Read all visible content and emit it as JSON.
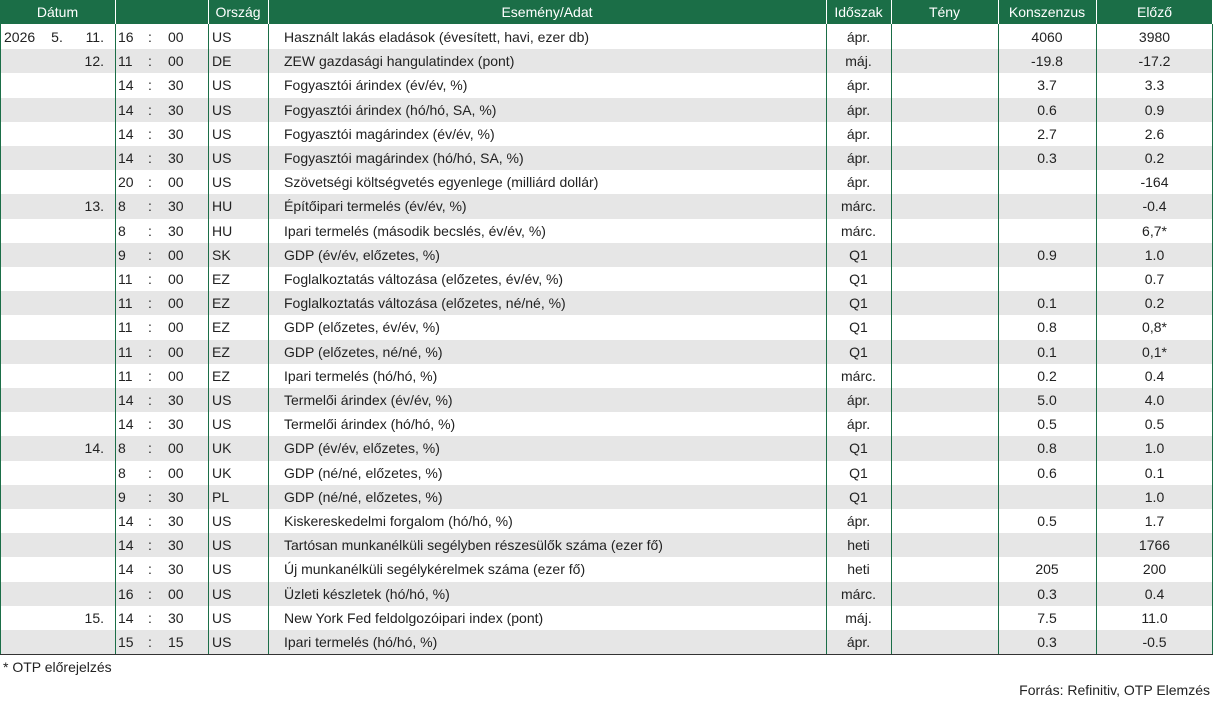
{
  "header": {
    "date": "Dátum",
    "country": "Ország",
    "event": "Esemény/Adat",
    "period": "Időszak",
    "actual": "Tény",
    "consensus": "Konszenzus",
    "previous": "Előző"
  },
  "table": {
    "rows": [
      [
        "2026",
        "5.",
        "11.",
        "16",
        ":",
        "00",
        "US",
        "Használt lakás eladások (évesített, havi, ezer db)",
        "ápr.",
        null,
        "4060",
        "3980"
      ],
      [
        null,
        null,
        "12.",
        "11",
        ":",
        "00",
        "DE",
        "ZEW gazdasági hangulatindex (pont)",
        "máj.",
        null,
        "-19.8",
        "-17.2"
      ],
      [
        null,
        null,
        null,
        "14",
        ":",
        "30",
        "US",
        "Fogyasztói árindex (év/év, %)",
        "ápr.",
        null,
        "3.7",
        "3.3"
      ],
      [
        null,
        null,
        null,
        "14",
        ":",
        "30",
        "US",
        "Fogyasztói árindex (hó/hó, SA, %)",
        "ápr.",
        null,
        "0.6",
        "0.9"
      ],
      [
        null,
        null,
        null,
        "14",
        ":",
        "30",
        "US",
        "Fogyasztói magárindex (év/év, %)",
        "ápr.",
        null,
        "2.7",
        "2.6"
      ],
      [
        null,
        null,
        null,
        "14",
        ":",
        "30",
        "US",
        "Fogyasztói magárindex (hó/hó, SA, %)",
        "ápr.",
        null,
        "0.3",
        "0.2"
      ],
      [
        null,
        null,
        null,
        "20",
        ":",
        "00",
        "US",
        "Szövetségi költségvetés egyenlege (milliárd dollár)",
        "ápr.",
        null,
        null,
        "-164"
      ],
      [
        null,
        null,
        "13.",
        "8",
        ":",
        "30",
        "HU",
        "Építőipari termelés (év/év, %)",
        "márc.",
        null,
        null,
        "-0.4"
      ],
      [
        null,
        null,
        null,
        "8",
        ":",
        "30",
        "HU",
        "Ipari termelés (második becslés, év/év, %)",
        "márc.",
        null,
        null,
        "6,7*"
      ],
      [
        null,
        null,
        null,
        "9",
        ":",
        "00",
        "SK",
        "GDP (év/év, előzetes, %)",
        "Q1",
        null,
        "0.9",
        "1.0"
      ],
      [
        null,
        null,
        null,
        "11",
        ":",
        "00",
        "EZ",
        "Foglalkoztatás változása (előzetes, év/év, %)",
        "Q1",
        null,
        null,
        "0.7"
      ],
      [
        null,
        null,
        null,
        "11",
        ":",
        "00",
        "EZ",
        "Foglalkoztatás változása (előzetes, né/né, %)",
        "Q1",
        null,
        "0.1",
        "0.2"
      ],
      [
        null,
        null,
        null,
        "11",
        ":",
        "00",
        "EZ",
        "GDP (előzetes, év/év, %)",
        "Q1",
        null,
        "0.8",
        "0,8*"
      ],
      [
        null,
        null,
        null,
        "11",
        ":",
        "00",
        "EZ",
        "GDP (előzetes, né/né, %)",
        "Q1",
        null,
        "0.1",
        "0,1*"
      ],
      [
        null,
        null,
        null,
        "11",
        ":",
        "00",
        "EZ",
        "Ipari termelés (hó/hó, %)",
        "márc.",
        null,
        "0.2",
        "0.4"
      ],
      [
        null,
        null,
        null,
        "14",
        ":",
        "30",
        "US",
        "Termelői árindex (év/év, %)",
        "ápr.",
        null,
        "5.0",
        "4.0"
      ],
      [
        null,
        null,
        null,
        "14",
        ":",
        "30",
        "US",
        "Termelői árindex (hó/hó, %)",
        "ápr.",
        null,
        "0.5",
        "0.5"
      ],
      [
        null,
        null,
        "14.",
        "8",
        ":",
        "00",
        "UK",
        "GDP (év/év, előzetes, %)",
        "Q1",
        null,
        "0.8",
        "1.0"
      ],
      [
        null,
        null,
        null,
        "8",
        ":",
        "00",
        "UK",
        "GDP (né/né, előzetes, %)",
        "Q1",
        null,
        "0.6",
        "0.1"
      ],
      [
        null,
        null,
        null,
        "9",
        ":",
        "30",
        "PL",
        "GDP (né/né, előzetes, %)",
        "Q1",
        null,
        null,
        "1.0"
      ],
      [
        null,
        null,
        null,
        "14",
        ":",
        "30",
        "US",
        "Kiskereskedelmi forgalom (hó/hó, %)",
        "ápr.",
        null,
        "0.5",
        "1.7"
      ],
      [
        null,
        null,
        null,
        "14",
        ":",
        "30",
        "US",
        "Tartósan munkanélküli segélyben részesülők száma (ezer fő)",
        "heti",
        null,
        null,
        "1766"
      ],
      [
        null,
        null,
        null,
        "14",
        ":",
        "30",
        "US",
        "Új munkanélküli segélykérelmek száma (ezer fő)",
        "heti",
        null,
        "205",
        "200"
      ],
      [
        null,
        null,
        null,
        "16",
        ":",
        "00",
        "US",
        "Üzleti készletek (hó/hó, %)",
        "márc.",
        null,
        "0.3",
        "0.4"
      ],
      [
        null,
        null,
        "15.",
        "14",
        ":",
        "30",
        "US",
        "New York Fed feldolgozóipari index (pont)",
        "máj.",
        null,
        "7.5",
        "11.0"
      ],
      [
        null,
        null,
        null,
        "15",
        ":",
        "15",
        "US",
        "Ipari termelés (hó/hó, %)",
        "ápr.",
        null,
        "0.3",
        "-0.5"
      ]
    ]
  },
  "footnote": "* OTP előrejelzés",
  "source": "Forrás: Refinitiv, OTP Elemzés"
}
